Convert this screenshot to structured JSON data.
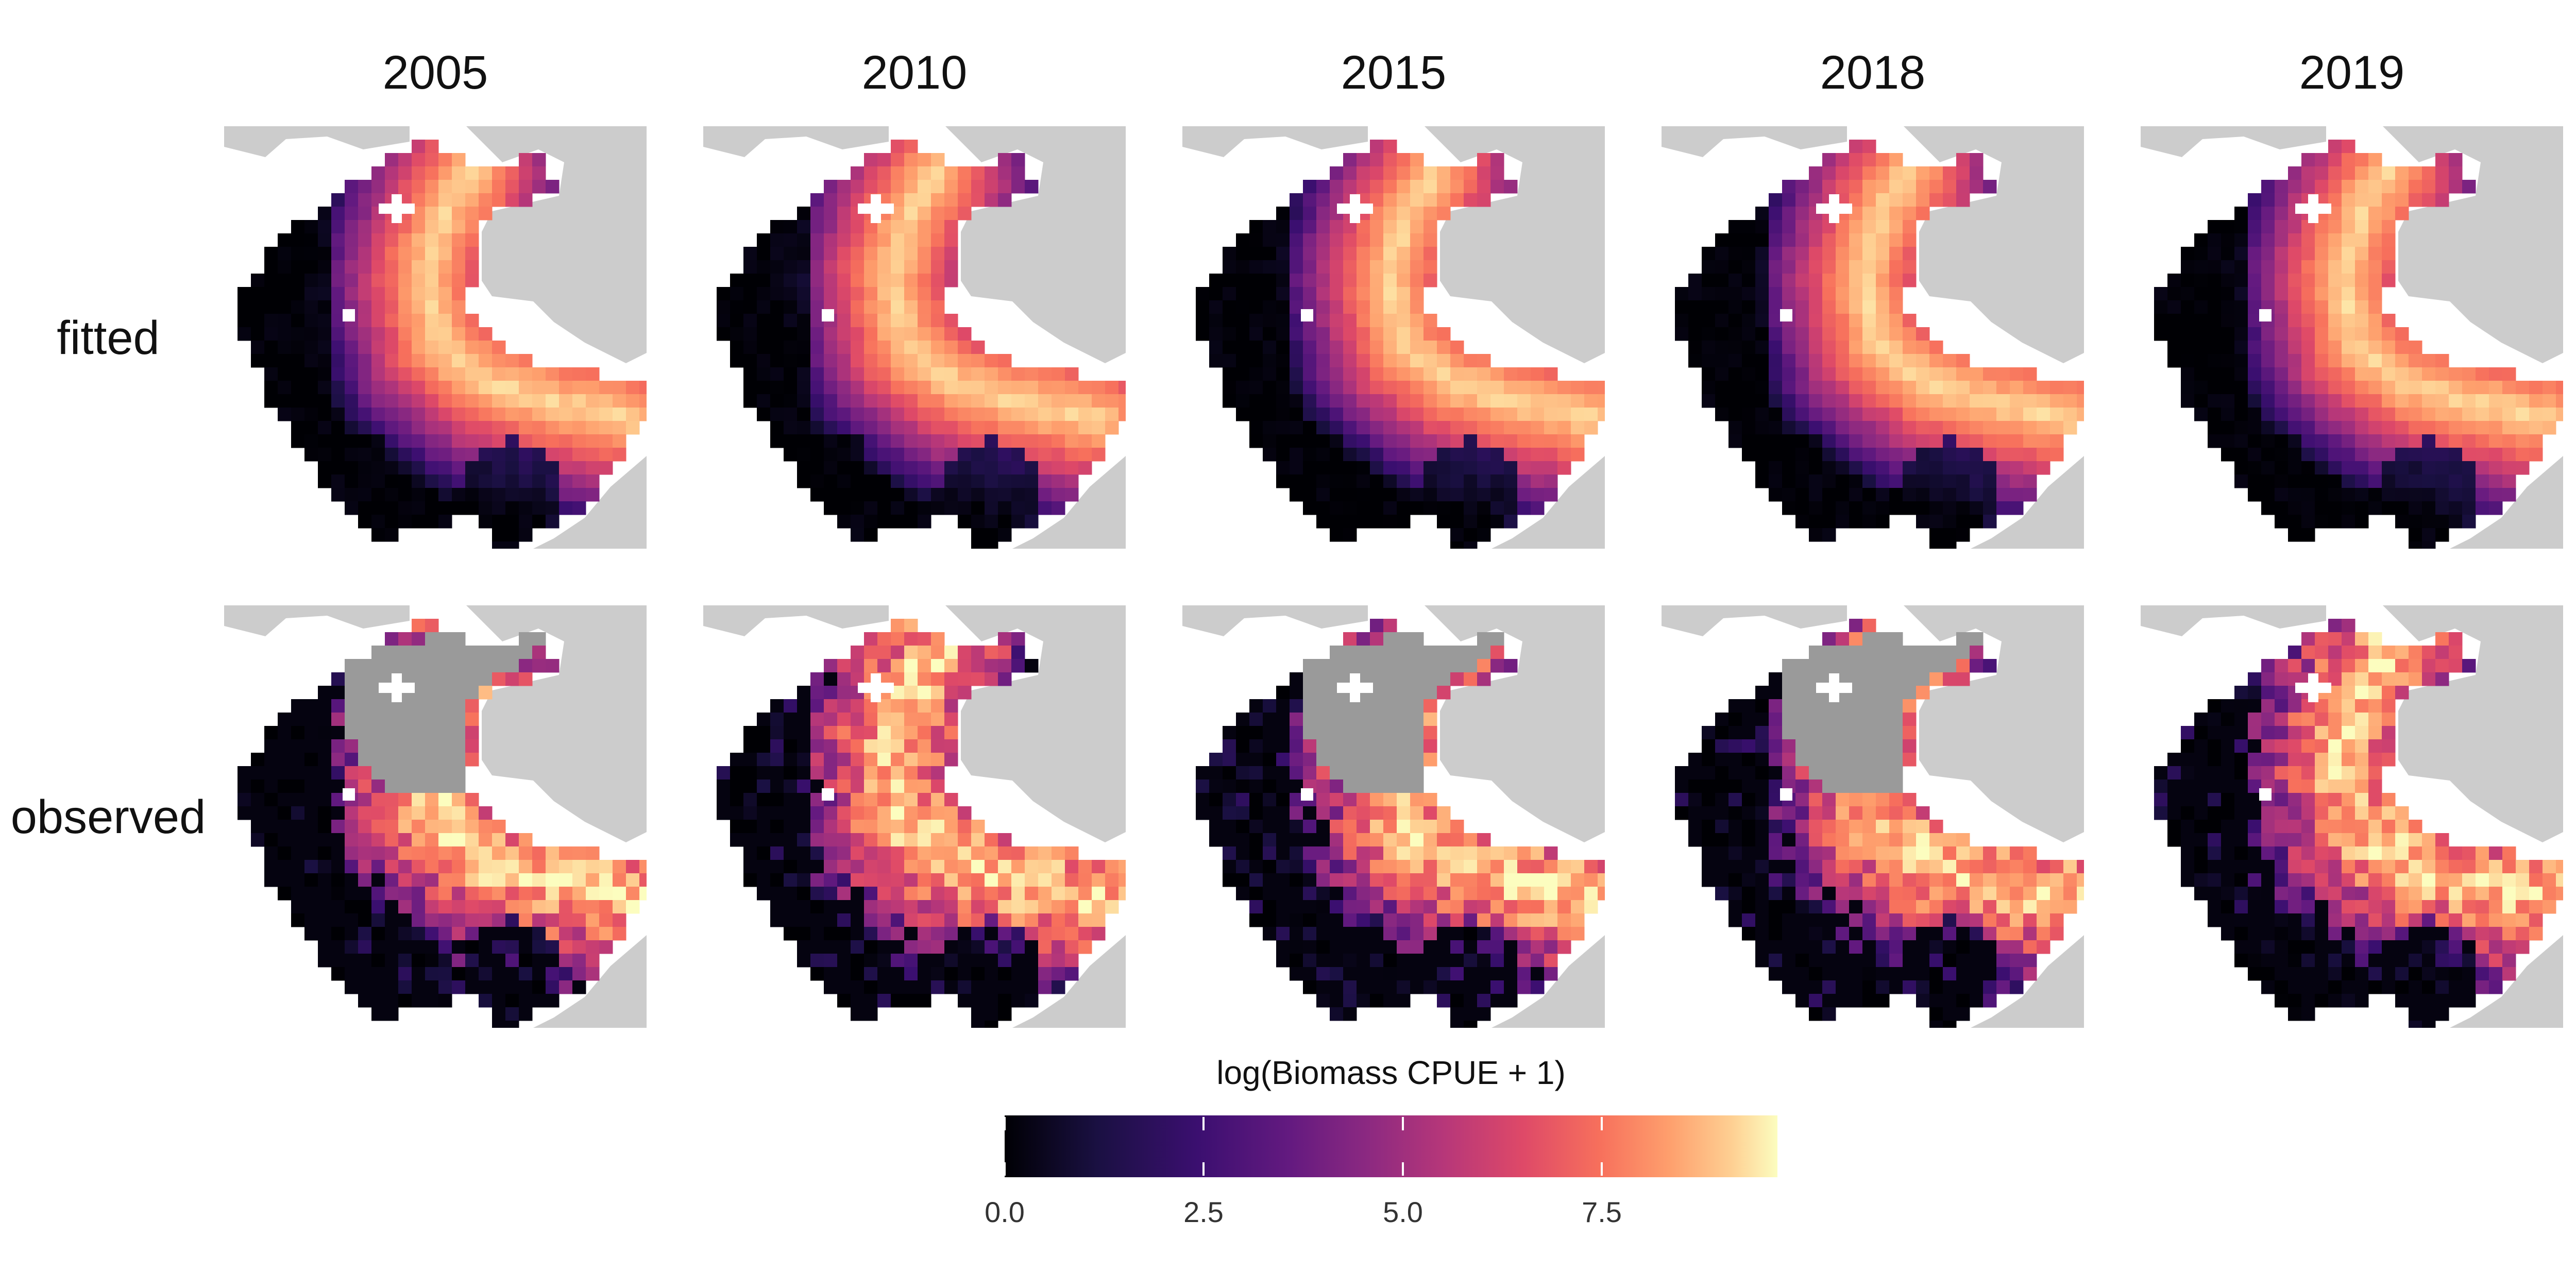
{
  "figure": {
    "columns": [
      "2005",
      "2010",
      "2015",
      "2018",
      "2019"
    ],
    "rows": [
      "fitted",
      "observed"
    ]
  },
  "legend": {
    "title": "log(Biomass CPUE + 1)",
    "ticks": [
      "0.0",
      "2.5",
      "5.0",
      "7.5"
    ],
    "tick_values": [
      0.0,
      2.5,
      5.0,
      7.5
    ],
    "range": [
      0,
      9.7
    ]
  },
  "colors": {
    "land": "#cccccc",
    "not_sampled": "#9a9a9a",
    "background": "#ffffff",
    "palette": [
      "#000004",
      "#1a1042",
      "#3b0f70",
      "#641a80",
      "#8c2981",
      "#b73779",
      "#de4968",
      "#f7705c",
      "#fe9f6d",
      "#fecf92",
      "#fcfdbf"
    ]
  }
}
